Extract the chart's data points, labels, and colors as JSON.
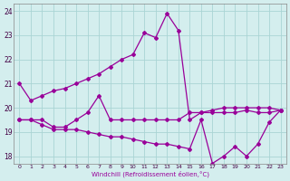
{
  "line1_x": [
    0,
    1,
    2,
    3,
    4,
    5,
    6,
    7,
    8,
    9,
    10,
    11,
    12,
    13,
    14,
    15,
    16,
    17,
    18,
    19,
    20,
    21,
    22,
    23
  ],
  "line1_y": [
    21.0,
    20.3,
    20.5,
    20.7,
    20.8,
    21.0,
    21.2,
    21.4,
    21.7,
    22.0,
    22.2,
    23.1,
    22.9,
    23.9,
    23.2,
    19.5,
    19.8,
    19.9,
    20.0,
    20.0,
    20.0,
    20.0,
    20.0,
    19.9
  ],
  "line2_x": [
    0,
    1,
    2,
    3,
    4,
    5,
    6,
    7,
    8,
    9,
    10,
    11,
    12,
    13,
    14,
    15,
    16,
    17,
    18,
    19,
    20,
    21,
    22,
    23
  ],
  "line2_y": [
    19.5,
    19.5,
    19.5,
    19.2,
    19.2,
    19.5,
    19.8,
    20.5,
    19.5,
    19.5,
    19.5,
    19.5,
    19.5,
    19.5,
    19.5,
    19.8,
    19.8,
    19.8,
    19.8,
    19.8,
    19.9,
    19.8,
    19.8,
    19.9
  ],
  "line3_x": [
    0,
    1,
    2,
    3,
    4,
    5,
    6,
    7,
    8,
    9,
    10,
    11,
    12,
    13,
    14,
    15,
    16,
    17,
    18,
    19,
    20,
    21,
    22,
    23
  ],
  "line3_y": [
    19.5,
    19.5,
    19.3,
    19.1,
    19.1,
    19.1,
    19.0,
    18.9,
    18.8,
    18.8,
    18.7,
    18.6,
    18.5,
    18.5,
    18.4,
    18.3,
    19.5,
    17.7,
    18.0,
    18.4,
    18.0,
    18.5,
    19.4,
    19.9
  ],
  "color": "#990099",
  "bg_color": "#d4eeee",
  "grid_color": "#aad4d4",
  "xlabel": "Windchill (Refroidissement éolien,°C)",
  "ylim": [
    17.7,
    24.3
  ],
  "xlim": [
    -0.5,
    23.5
  ],
  "yticks": [
    18,
    19,
    20,
    21,
    22,
    23,
    24
  ],
  "xticks": [
    0,
    1,
    2,
    3,
    4,
    5,
    6,
    7,
    8,
    9,
    10,
    11,
    12,
    13,
    14,
    15,
    16,
    17,
    18,
    19,
    20,
    21,
    22,
    23
  ]
}
